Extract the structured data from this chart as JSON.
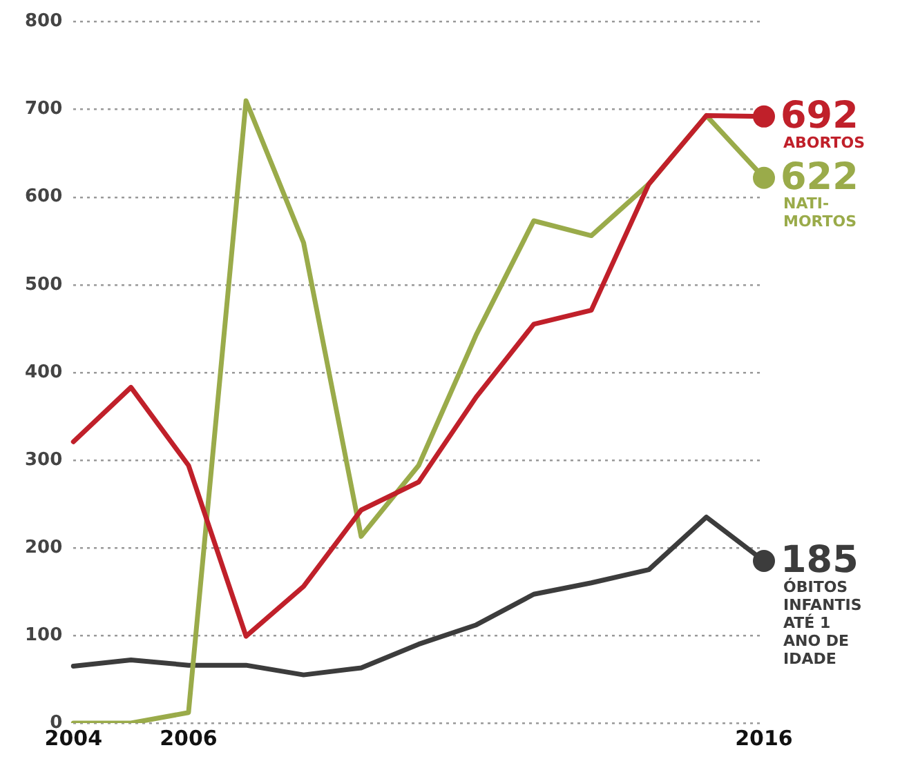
{
  "chart_data": {
    "type": "line",
    "categories": [
      "2004",
      null,
      "2006",
      null,
      null,
      null,
      null,
      null,
      null,
      null,
      null,
      null,
      "2016"
    ],
    "series": [
      {
        "name": "ABORTOS",
        "color": "#c0202a",
        "values": [
          321,
          383,
          294,
          99,
          156,
          243,
          275,
          372,
          455,
          471,
          615,
          693,
          692
        ],
        "value_labels": [
          null,
          null,
          null,
          null,
          null,
          null,
          null,
          null,
          null,
          null,
          null,
          null,
          "692"
        ]
      },
      {
        "name": "NATI-MORTOS",
        "color": "#9aab4a",
        "values": [
          0,
          0,
          12,
          710,
          548,
          213,
          294,
          443,
          573,
          556,
          615,
          693,
          622
        ],
        "value_labels": [
          null,
          null,
          null,
          null,
          null,
          null,
          null,
          null,
          null,
          null,
          null,
          null,
          "622"
        ]
      },
      {
        "name": "ÓBITOS INFANTIS ATÉ 1 ANO DE IDADE",
        "color": "#3c3c3c",
        "values": [
          65,
          72,
          66,
          66,
          55,
          63,
          90,
          112,
          147,
          160,
          175,
          235,
          185
        ],
        "value_labels": [
          null,
          null,
          null,
          null,
          null,
          null,
          null,
          null,
          null,
          null,
          null,
          null,
          "185"
        ]
      }
    ],
    "ylim": [
      0,
      800
    ],
    "yticks": [
      0,
      100,
      200,
      300,
      400,
      500,
      600,
      700,
      800
    ],
    "grid": "y",
    "legend": false,
    "marker": "none",
    "line_style": "solid"
  }
}
